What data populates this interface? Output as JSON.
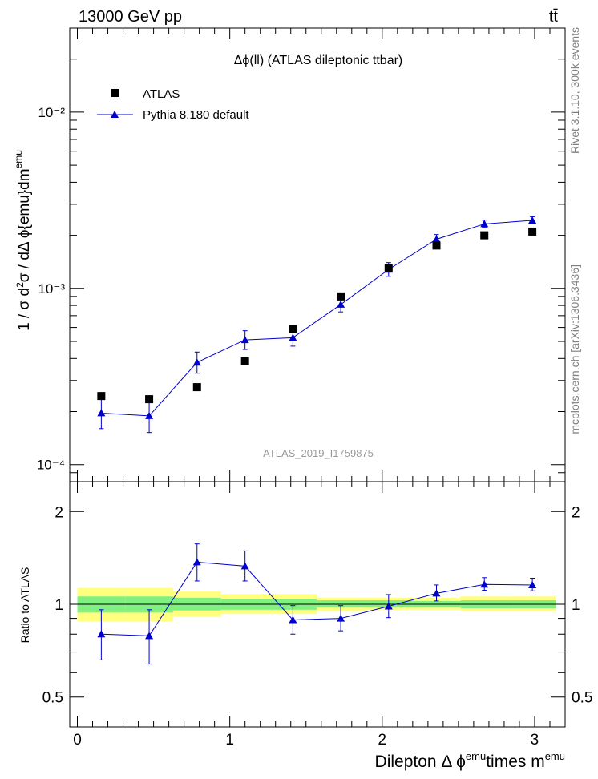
{
  "header": {
    "left": "13000 GeV pp",
    "right": "tt̄"
  },
  "side_labels": {
    "rivet": "Rivet 3.1.10,  300k events",
    "mcplots": "mcplots.cern.ch [arXiv:1306.3436]"
  },
  "chart_data": [
    {
      "type": "scatter",
      "panel": "main",
      "title": "Δϕ(ll) (ATLAS dileptonic ttbar)",
      "watermark": "ATLAS_2019_I1759875",
      "ylabel": "1 / σ  d²σ / dΔ ϕ{emu}dm^emu",
      "yscale": "log",
      "ylim": [
        8e-05,
        0.03
      ],
      "xlim": [
        -0.05,
        3.2
      ],
      "y_ticks": [
        {
          "value": 0.0001,
          "label": "10⁻⁴"
        },
        {
          "value": 0.001,
          "label": "10⁻³"
        },
        {
          "value": 0.01,
          "label": "10⁻²"
        }
      ],
      "legend": [
        "ATLAS",
        "Pythia 8.180 default"
      ],
      "x": [
        0.157,
        0.471,
        0.785,
        1.1,
        1.414,
        1.728,
        2.042,
        2.356,
        2.67,
        2.985
      ],
      "series": [
        {
          "name": "ATLAS",
          "marker": "square",
          "color": "#000000",
          "values": [
            0.000245,
            0.000235,
            0.000275,
            0.000385,
            0.00059,
            0.0009,
            0.0013,
            0.00175,
            0.002,
            0.0021
          ]
        },
        {
          "name": "Pythia 8.180 default",
          "marker": "triangle",
          "color": "#0000cc",
          "values": [
            0.000196,
            0.000189,
            0.00038,
            0.00051,
            0.000525,
            0.00081,
            0.00128,
            0.0019,
            0.00232,
            0.00243
          ],
          "err_up": [
            4e-05,
            4e-05,
            5.5e-05,
            6.5e-05,
            6e-05,
            8e-05,
            0.00012,
            0.00012,
            0.00012,
            0.00012
          ],
          "err_down": [
            3.6e-05,
            3.7e-05,
            5e-05,
            6e-05,
            5.5e-05,
            7.5e-05,
            0.00011,
            0.00011,
            0.00011,
            0.00011
          ]
        }
      ]
    },
    {
      "type": "scatter",
      "panel": "ratio",
      "ylabel": "Ratio to ATLAS",
      "xlabel": "Dilepton Δ ϕ^emu times m^emu",
      "yscale": "log",
      "ylim": [
        0.4,
        2.5
      ],
      "xlim": [
        -0.05,
        3.2
      ],
      "x_ticks": [
        0,
        1,
        2,
        3
      ],
      "y_ticks": [
        0.5,
        1,
        2
      ],
      "x": [
        0.157,
        0.471,
        0.785,
        1.1,
        1.414,
        1.728,
        2.042,
        2.356,
        2.67,
        2.985
      ],
      "ratio": {
        "name": "Pythia 8.180 default",
        "values": [
          0.8,
          0.79,
          1.37,
          1.33,
          0.89,
          0.9,
          0.985,
          1.085,
          1.16,
          1.155
        ],
        "err_up": [
          0.16,
          0.17,
          0.2,
          0.16,
          0.1,
          0.09,
          0.09,
          0.07,
          0.06,
          0.06
        ],
        "err_down": [
          0.14,
          0.15,
          0.18,
          0.14,
          0.09,
          0.08,
          0.08,
          0.06,
          0.05,
          0.05
        ]
      },
      "bands": {
        "edges": [
          0,
          0.314,
          0.628,
          0.942,
          1.257,
          1.571,
          1.885,
          2.199,
          2.513,
          2.827,
          3.142
        ],
        "yellow_up": [
          1.13,
          1.13,
          1.1,
          1.08,
          1.08,
          1.05,
          1.05,
          1.05,
          1.06,
          1.06
        ],
        "yellow_down": [
          0.88,
          0.88,
          0.91,
          0.93,
          0.93,
          0.95,
          0.96,
          0.96,
          0.95,
          0.95
        ],
        "green_up": [
          1.06,
          1.06,
          1.05,
          1.04,
          1.04,
          1.03,
          1.03,
          1.025,
          1.03,
          1.03
        ],
        "green_down": [
          0.94,
          0.94,
          0.955,
          0.96,
          0.96,
          0.975,
          0.975,
          0.975,
          0.97,
          0.97
        ]
      }
    }
  ]
}
